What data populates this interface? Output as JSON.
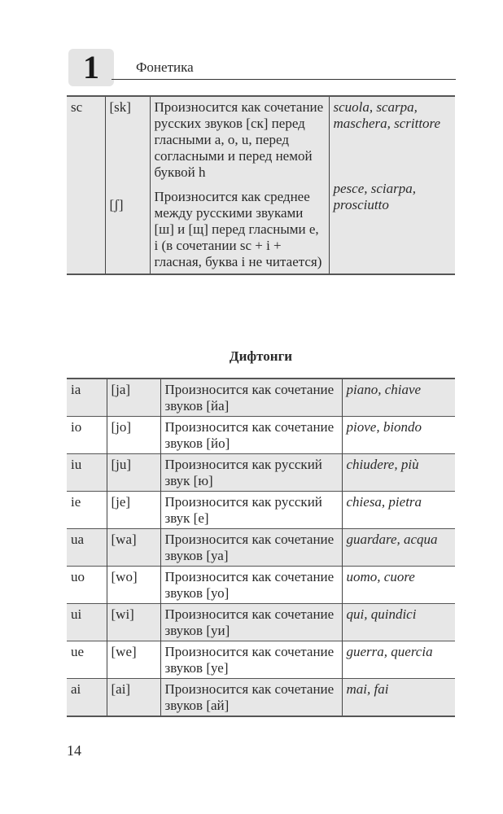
{
  "header": {
    "chapter_number": "1",
    "chapter_title": "Фонетика"
  },
  "sc_table": {
    "letters": "sc",
    "sound1": "[sk]",
    "desc1": "Произносится как сочетание русских звуков [ск] перед гласными a, o, u, перед согласными и перед немой буквой h",
    "examples1": "scuola, scarpa, maschera, scrittore",
    "sound2": "[ʃ]",
    "desc2": "Произносится как среднее между русскими звуками [ш] и [щ] перед гласными e, i (в сочетании sc + i + гласная, буква i не читается)",
    "examples2": "pesce, sciarpa, prosciutto"
  },
  "diphthongs": {
    "title": "Дифтонги",
    "rows": [
      {
        "letters": "ia",
        "sound": "[ja]",
        "desc": "Произносится как сочетание звуков [йа]",
        "examples": "piano, chiave"
      },
      {
        "letters": "io",
        "sound": "[jo]",
        "desc": "Произносится как сочетание звуков [йо]",
        "examples": "piove, biondo"
      },
      {
        "letters": "iu",
        "sound": "[ju]",
        "desc": "Произносится как русский звук [ю]",
        "examples": "chiudere, più"
      },
      {
        "letters": "ie",
        "sound": "[je]",
        "desc": "Произносится как русский звук [е]",
        "examples": "chiesa, pietra"
      },
      {
        "letters": "ua",
        "sound": "[wa]",
        "desc": "Произносится как сочетание звуков [уа]",
        "examples": "guardare, acqua"
      },
      {
        "letters": "uo",
        "sound": "[wo]",
        "desc": "Произносится как сочетание звуков [уо]",
        "examples": "uomo, cuore"
      },
      {
        "letters": "ui",
        "sound": "[wi]",
        "desc": "Произносится как сочетание звуков [уи]",
        "examples": "qui, quindici"
      },
      {
        "letters": "ue",
        "sound": "[we]",
        "desc": "Произносится как сочетание звуков [уе]",
        "examples": "guerra, quercia"
      },
      {
        "letters": "ai",
        "sound": "[ai]",
        "desc": "Произносится как сочетание звуков [ай]",
        "examples": "mai, fai"
      }
    ]
  },
  "page_number": "14"
}
